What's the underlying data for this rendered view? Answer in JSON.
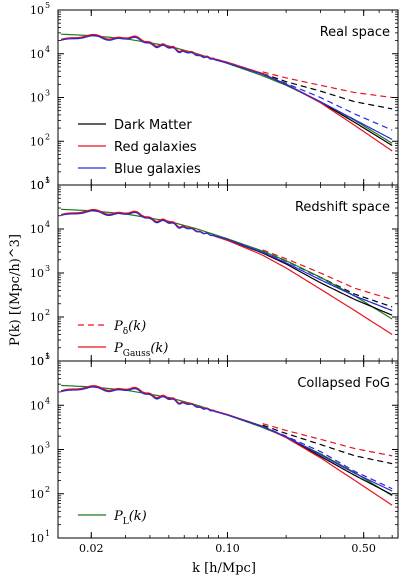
{
  "chart_data": {
    "type": "line",
    "xlabel": "k [h/Mpc]",
    "ylabel": "P(k) [(Mpc/h)^3]",
    "xscale": "log",
    "yscale": "log",
    "xlim": [
      0.0135,
      0.75
    ],
    "ylim": [
      10,
      100000
    ],
    "x_ticks": [
      "0.02",
      "0.10",
      "0.50"
    ],
    "x_tick_values": [
      0.02,
      0.1,
      0.5
    ],
    "y_ticks": [
      {
        "base": "10",
        "exp": "1",
        "value": 10
      },
      {
        "base": "10",
        "exp": "2",
        "value": 100
      },
      {
        "base": "10",
        "exp": "3",
        "value": 1000
      },
      {
        "base": "10",
        "exp": "4",
        "value": 10000
      },
      {
        "base": "10",
        "exp": "5",
        "value": 100000
      }
    ],
    "colors": {
      "dark_matter": "#000000",
      "red": "#e8141c",
      "blue": "#2a2adc",
      "green": "#1b7a1b"
    },
    "legends": [
      {
        "panel": 0,
        "entries": [
          {
            "label": "Dark Matter",
            "color": "#000000",
            "style": "solid"
          },
          {
            "label": "Red galaxies",
            "color": "#e8141c",
            "style": "solid"
          },
          {
            "label": "Blue galaxies",
            "color": "#2a2adc",
            "style": "solid"
          }
        ]
      },
      {
        "panel": 1,
        "entries": [
          {
            "label": "P_δ(k)",
            "main": "P",
            "sub": "δ",
            "tail": "(k)",
            "color": "#e8141c",
            "style": "dashed"
          },
          {
            "label": "P_Gauss(k)",
            "main": "P",
            "sub": "Gauss",
            "tail": "(k)",
            "color": "#e8141c",
            "style": "solid"
          }
        ]
      },
      {
        "panel": 2,
        "entries": [
          {
            "label": "P_L(k)",
            "main": "P",
            "sub": "L",
            "tail": "(k)",
            "color": "#1b7a1b",
            "style": "solid"
          }
        ]
      }
    ],
    "panels": [
      {
        "title": "Real space",
        "x": [
          0.014,
          0.02,
          0.03,
          0.05,
          0.07,
          0.1,
          0.15,
          0.2,
          0.3,
          0.45,
          0.7
        ],
        "series": [
          {
            "key": "linear",
            "color": "#1b7a1b",
            "style": "solid",
            "values": [
              28000,
              26000,
              22000,
              15000,
              10000,
              6000,
              3200,
              1900,
              800,
              300,
              90
            ]
          },
          {
            "key": "dm_gauss",
            "color": "#000000",
            "style": "solid",
            "values": [
              21000,
              23000,
              24000,
              14000,
              9500,
              6200,
              3500,
              2000,
              780,
              270,
              80
            ]
          },
          {
            "key": "red_gauss",
            "color": "#e8141c",
            "style": "solid",
            "values": [
              21500,
              24000,
              25000,
              14500,
              9800,
              6400,
              3600,
              2000,
              760,
              230,
              60
            ]
          },
          {
            "key": "blue_gauss",
            "color": "#2a2adc",
            "style": "solid",
            "values": [
              20500,
              22500,
              23500,
              13500,
              9300,
              6100,
              3450,
              2000,
              800,
              310,
              110
            ]
          },
          {
            "key": "dm_pdelta",
            "color": "#000000",
            "style": "dashed",
            "values": [
              null,
              null,
              null,
              null,
              null,
              null,
              3600,
              2300,
              1400,
              800,
              550
            ]
          },
          {
            "key": "red_pdelta",
            "color": "#e8141c",
            "style": "dashed",
            "values": [
              null,
              null,
              null,
              null,
              null,
              null,
              3900,
              2800,
              1900,
              1300,
              1000
            ]
          },
          {
            "key": "blue_pdelta",
            "color": "#2a2adc",
            "style": "dashed",
            "values": [
              null,
              null,
              null,
              null,
              null,
              null,
              3500,
              2100,
              1000,
              420,
              180
            ]
          }
        ]
      },
      {
        "title": "Redshift space",
        "x": [
          0.014,
          0.02,
          0.03,
          0.05,
          0.07,
          0.1,
          0.15,
          0.2,
          0.3,
          0.45,
          0.7
        ],
        "series": [
          {
            "key": "linear",
            "color": "#1b7a1b",
            "style": "solid",
            "values": [
              28000,
              26000,
              22000,
              15000,
              10000,
              6000,
              3200,
              1900,
              800,
              300,
              90
            ]
          },
          {
            "key": "dm_gauss",
            "color": "#000000",
            "style": "solid",
            "values": [
              21000,
              23000,
              24000,
              14000,
              9000,
              5700,
              2900,
              1600,
              600,
              250,
              110
            ]
          },
          {
            "key": "red_gauss",
            "color": "#e8141c",
            "style": "solid",
            "values": [
              21500,
              24000,
              25000,
              14500,
              9200,
              5500,
              2600,
              1300,
              430,
              140,
              40
            ]
          },
          {
            "key": "blue_gauss",
            "color": "#2a2adc",
            "style": "solid",
            "values": [
              20500,
              22500,
              23500,
              13500,
              8900,
              5800,
              3000,
              1700,
              700,
              300,
              140
            ]
          },
          {
            "key": "dm_pdelta",
            "color": "#000000",
            "style": "dashed",
            "values": [
              null,
              null,
              null,
              null,
              null,
              null,
              3200,
              1900,
              800,
              330,
              170
            ]
          },
          {
            "key": "red_pdelta",
            "color": "#e8141c",
            "style": "dashed",
            "values": [
              null,
              null,
              null,
              null,
              null,
              null,
              3400,
              2100,
              1000,
              450,
              250
            ]
          },
          {
            "key": "blue_pdelta",
            "color": "#2a2adc",
            "style": "dashed",
            "values": [
              null,
              null,
              null,
              null,
              null,
              null,
              3150,
              1850,
              780,
              300,
              140
            ]
          }
        ]
      },
      {
        "title": "Collapsed FoG",
        "x": [
          0.014,
          0.02,
          0.03,
          0.05,
          0.07,
          0.1,
          0.15,
          0.2,
          0.3,
          0.45,
          0.7
        ],
        "series": [
          {
            "key": "linear",
            "color": "#1b7a1b",
            "style": "solid",
            "values": [
              28000,
              26000,
              22000,
              15000,
              10000,
              6000,
              3200,
              1900,
              800,
              300,
              90
            ]
          },
          {
            "key": "dm_gauss",
            "color": "#000000",
            "style": "solid",
            "values": [
              21000,
              23000,
              24000,
              14000,
              9400,
              6100,
              3400,
              1900,
              700,
              260,
              95
            ]
          },
          {
            "key": "red_gauss",
            "color": "#e8141c",
            "style": "solid",
            "values": [
              21500,
              24000,
              25000,
              14500,
              9600,
              6200,
              3400,
              1850,
              650,
              200,
              55
            ]
          },
          {
            "key": "blue_gauss",
            "color": "#2a2adc",
            "style": "solid",
            "values": [
              20500,
              22500,
              23500,
              13500,
              9300,
              6000,
              3350,
              1950,
              760,
              290,
              115
            ]
          },
          {
            "key": "dm_pdelta",
            "color": "#000000",
            "style": "dashed",
            "values": [
              null,
              null,
              null,
              null,
              null,
              null,
              3600,
              2300,
              1300,
              720,
              480
            ]
          },
          {
            "key": "red_pdelta",
            "color": "#e8141c",
            "style": "dashed",
            "values": [
              null,
              null,
              null,
              null,
              null,
              null,
              3900,
              2700,
              1700,
              1050,
              720
            ]
          },
          {
            "key": "blue_pdelta",
            "color": "#2a2adc",
            "style": "dashed",
            "values": [
              null,
              null,
              null,
              null,
              null,
              null,
              3400,
              2000,
              900,
              320,
              130
            ]
          }
        ]
      }
    ]
  }
}
